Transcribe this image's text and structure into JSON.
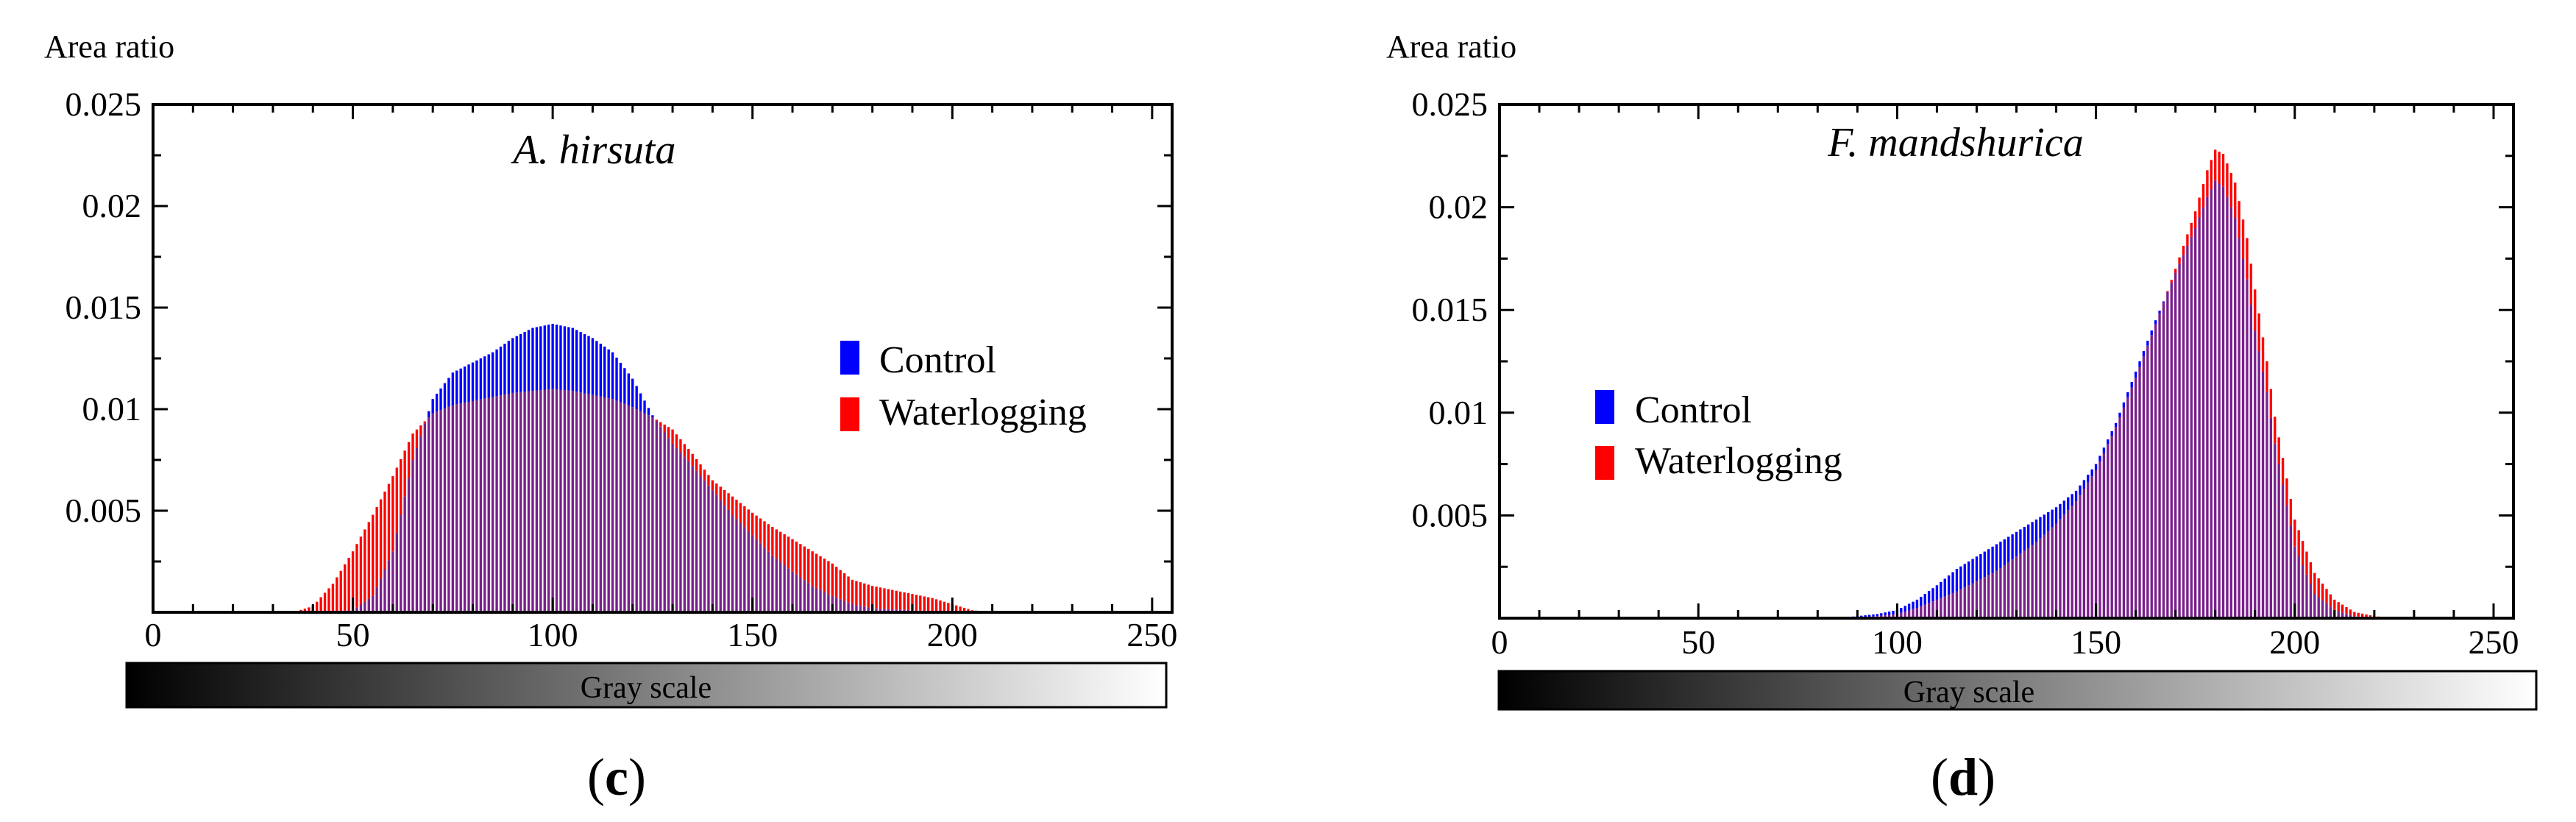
{
  "figure": {
    "panels": [
      "(c)",
      "(d)"
    ]
  },
  "colors": {
    "control": "#0000ff",
    "waterlogging": "#ff0000",
    "overlap": "#7a1f8c",
    "axis": "#000000"
  },
  "chart_data": [
    {
      "type": "bar",
      "panel_label": "c",
      "title": "A. hirsuta",
      "ylabel": "Area ratio",
      "xlabel": "Gray scale",
      "xlim": [
        0,
        255
      ],
      "ylim": [
        0,
        0.025
      ],
      "x_ticks": [
        "0",
        "50",
        "100",
        "150",
        "200",
        "250"
      ],
      "y_ticks": [
        "0.005",
        "0.01",
        "0.015",
        "0.02",
        "0.025"
      ],
      "legend": [
        "Control",
        "Waterlogging"
      ],
      "legend_position": "right",
      "series": [
        {
          "name": "Control",
          "color": "#0000ff",
          "points": [
            [
              40,
              0
            ],
            [
              50,
              0.0001
            ],
            [
              55,
              0.0008
            ],
            [
              60,
              0.003
            ],
            [
              65,
              0.0075
            ],
            [
              70,
              0.0105
            ],
            [
              75,
              0.0118
            ],
            [
              80,
              0.0123
            ],
            [
              85,
              0.0128
            ],
            [
              90,
              0.0135
            ],
            [
              95,
              0.014
            ],
            [
              100,
              0.0142
            ],
            [
              105,
              0.014
            ],
            [
              110,
              0.0135
            ],
            [
              115,
              0.0128
            ],
            [
              120,
              0.0115
            ],
            [
              125,
              0.0097
            ],
            [
              130,
              0.0083
            ],
            [
              135,
              0.0072
            ],
            [
              140,
              0.006
            ],
            [
              145,
              0.0048
            ],
            [
              150,
              0.0038
            ],
            [
              155,
              0.0028
            ],
            [
              160,
              0.002
            ],
            [
              165,
              0.0013
            ],
            [
              170,
              0.0008
            ],
            [
              175,
              0.0004
            ],
            [
              180,
              0.0002
            ],
            [
              190,
              0.0001
            ],
            [
              200,
              0
            ]
          ]
        },
        {
          "name": "Waterlogging",
          "color": "#ff0000",
          "points": [
            [
              35,
              0
            ],
            [
              40,
              0.0003
            ],
            [
              45,
              0.0014
            ],
            [
              50,
              0.003
            ],
            [
              55,
              0.0048
            ],
            [
              60,
              0.0067
            ],
            [
              65,
              0.0088
            ],
            [
              70,
              0.0098
            ],
            [
              75,
              0.0102
            ],
            [
              80,
              0.0104
            ],
            [
              85,
              0.0106
            ],
            [
              90,
              0.0108
            ],
            [
              95,
              0.0109
            ],
            [
              100,
              0.011
            ],
            [
              105,
              0.0109
            ],
            [
              110,
              0.0107
            ],
            [
              115,
              0.0105
            ],
            [
              120,
              0.0101
            ],
            [
              125,
              0.0096
            ],
            [
              130,
              0.009
            ],
            [
              135,
              0.0078
            ],
            [
              140,
              0.0065
            ],
            [
              145,
              0.0057
            ],
            [
              150,
              0.0049
            ],
            [
              155,
              0.0042
            ],
            [
              160,
              0.0036
            ],
            [
              165,
              0.003
            ],
            [
              170,
              0.0024
            ],
            [
              175,
              0.0016
            ],
            [
              180,
              0.0013
            ],
            [
              185,
              0.0011
            ],
            [
              190,
              0.0009
            ],
            [
              195,
              0.0007
            ],
            [
              200,
              0.0004
            ],
            [
              205,
              0.0001
            ],
            [
              210,
              0
            ]
          ]
        }
      ]
    },
    {
      "type": "bar",
      "panel_label": "d",
      "title": "F. mandshurica",
      "ylabel": "Area ratio",
      "xlabel": "Gray scale",
      "xlim": [
        0,
        255
      ],
      "ylim": [
        0,
        0.025
      ],
      "x_ticks": [
        "0",
        "50",
        "100",
        "150",
        "200",
        "250"
      ],
      "y_ticks": [
        "0.005",
        "0.01",
        "0.015",
        "0.02",
        "0.025"
      ],
      "legend": [
        "Control",
        "Waterlogging"
      ],
      "legend_position": "left",
      "series": [
        {
          "name": "Control",
          "color": "#0000ff",
          "points": [
            [
              85,
              0
            ],
            [
              90,
              0.0001
            ],
            [
              95,
              0.0002
            ],
            [
              100,
              0.0004
            ],
            [
              105,
              0.0009
            ],
            [
              110,
              0.0016
            ],
            [
              115,
              0.0024
            ],
            [
              120,
              0.003
            ],
            [
              125,
              0.0036
            ],
            [
              130,
              0.0042
            ],
            [
              135,
              0.0048
            ],
            [
              140,
              0.0054
            ],
            [
              145,
              0.0062
            ],
            [
              150,
              0.0075
            ],
            [
              155,
              0.0095
            ],
            [
              160,
              0.012
            ],
            [
              165,
              0.0145
            ],
            [
              170,
              0.0168
            ],
            [
              175,
              0.019
            ],
            [
              178,
              0.0205
            ],
            [
              180,
              0.0213
            ],
            [
              182,
              0.021
            ],
            [
              185,
              0.0195
            ],
            [
              188,
              0.0165
            ],
            [
              190,
              0.014
            ],
            [
              193,
              0.011
            ],
            [
              195,
              0.0085
            ],
            [
              198,
              0.0055
            ],
            [
              200,
              0.0035
            ],
            [
              205,
              0.0012
            ],
            [
              210,
              0.0004
            ],
            [
              215,
              0.0001
            ],
            [
              220,
              0
            ]
          ]
        },
        {
          "name": "Waterlogging",
          "color": "#ff0000",
          "points": [
            [
              90,
              0
            ],
            [
              95,
              0.0001
            ],
            [
              100,
              0.0002
            ],
            [
              105,
              0.0005
            ],
            [
              110,
              0.0009
            ],
            [
              115,
              0.0013
            ],
            [
              120,
              0.0018
            ],
            [
              125,
              0.0023
            ],
            [
              130,
              0.003
            ],
            [
              135,
              0.0037
            ],
            [
              140,
              0.0046
            ],
            [
              145,
              0.0057
            ],
            [
              150,
              0.0072
            ],
            [
              155,
              0.0093
            ],
            [
              160,
              0.0117
            ],
            [
              165,
              0.0143
            ],
            [
              170,
              0.017
            ],
            [
              175,
              0.0198
            ],
            [
              178,
              0.0218
            ],
            [
              180,
              0.0228
            ],
            [
              182,
              0.0226
            ],
            [
              185,
              0.0212
            ],
            [
              188,
              0.0185
            ],
            [
              190,
              0.016
            ],
            [
              193,
              0.0125
            ],
            [
              195,
              0.0098
            ],
            [
              198,
              0.0068
            ],
            [
              200,
              0.0048
            ],
            [
              205,
              0.0022
            ],
            [
              210,
              0.0009
            ],
            [
              215,
              0.0003
            ],
            [
              220,
              0.0001
            ],
            [
              225,
              0
            ]
          ]
        }
      ]
    }
  ]
}
